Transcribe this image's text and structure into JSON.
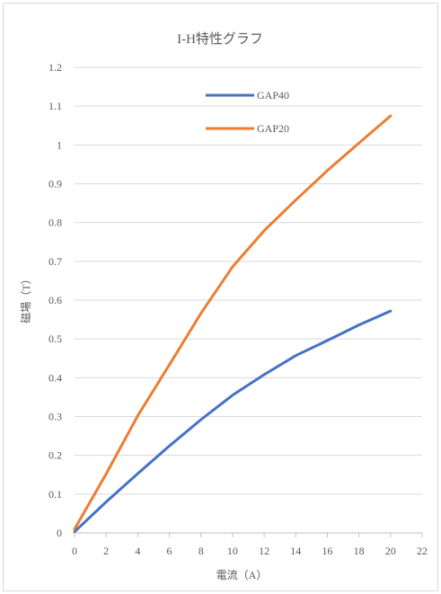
{
  "chart_data": {
    "type": "line",
    "title": "I-H特性グラフ",
    "xlabel": "電流（A）",
    "ylabel": "磁場（T）",
    "xlim": [
      0,
      22
    ],
    "ylim": [
      0,
      1.2
    ],
    "x_ticks": [
      "0",
      "2",
      "4",
      "6",
      "8",
      "10",
      "12",
      "14",
      "16",
      "18",
      "20",
      "22"
    ],
    "y_ticks": [
      "0",
      "0.1",
      "0.2",
      "0.3",
      "0.4",
      "0.5",
      "0.6",
      "0.7",
      "0.8",
      "0.9",
      "1",
      "1.1",
      "1.2"
    ],
    "grid": "horizontal",
    "legend_position": "top-center",
    "series": [
      {
        "name": "GAP40",
        "color": "#4472c4",
        "x": [
          0,
          2,
          4,
          6,
          8,
          10,
          12,
          14,
          16,
          18,
          20
        ],
        "y": [
          0.003,
          0.08,
          0.153,
          0.224,
          0.292,
          0.355,
          0.408,
          0.457,
          0.496,
          0.536,
          0.572
        ]
      },
      {
        "name": "GAP20",
        "color": "#ed7d31",
        "x": [
          0,
          2,
          4,
          6,
          8,
          10,
          12,
          14,
          16,
          18,
          20
        ],
        "y": [
          0.01,
          0.152,
          0.302,
          0.433,
          0.566,
          0.686,
          0.779,
          0.858,
          0.934,
          1.005,
          1.075
        ]
      }
    ]
  }
}
